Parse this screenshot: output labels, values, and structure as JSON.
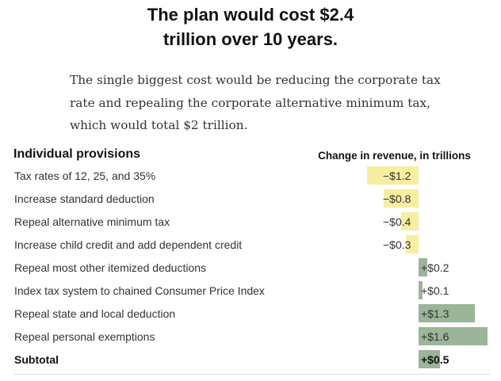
{
  "title_lines": [
    "The plan would cost $2.4",
    "trillion over 10 years."
  ],
  "subtitle": "The single biggest cost would be reducing the corporate tax rate and repealing the corporate alternative minimum tax, which would total $2 trillion.",
  "colors": {
    "cost": "#f7ee9f",
    "revenue": "#9ab597"
  },
  "chart_data": {
    "type": "bar",
    "orientation": "horizontal",
    "title": "Individual provisions",
    "value_header": "Change in revenue, in trillions",
    "unit": "trillions of dollars",
    "categories": [
      "Tax rates of 12, 25, and 35%",
      "Increase standard deduction",
      "Repeal alternative minimum tax",
      "Increase child credit and add dependent credit",
      "Repeal most other itemized deductions",
      "Index tax system to chained Consumer Price Index",
      "Repeal state and local deduction",
      "Repeal personal exemptions",
      "Subtotal"
    ],
    "values": [
      -1.2,
      -0.8,
      -0.4,
      -0.3,
      0.2,
      0.1,
      1.3,
      1.6,
      0.5
    ],
    "value_labels": [
      "−$1.2",
      "−$0.8",
      "−$0.4",
      "−$0.3",
      "+$0.2",
      "+$0.1",
      "+$1.3",
      "+$1.6",
      "+$0.5"
    ]
  }
}
